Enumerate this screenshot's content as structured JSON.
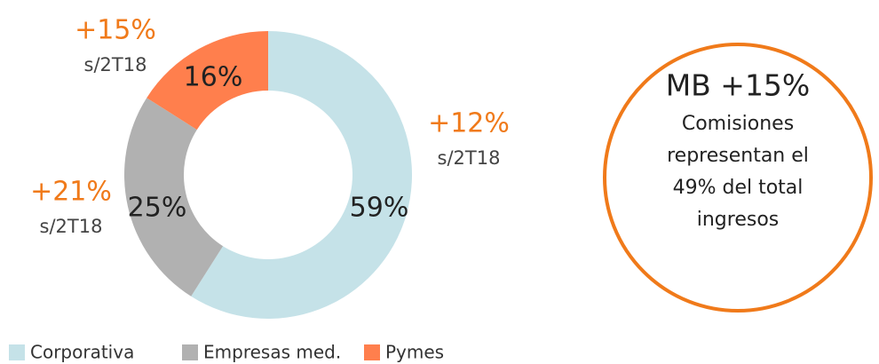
{
  "chart_data": {
    "type": "donut",
    "categories": [
      "Corporativa",
      "Empresas med.",
      "Pymes"
    ],
    "values": [
      59,
      25,
      16
    ],
    "value_labels": [
      "59%",
      "25%",
      "16%"
    ],
    "colors": [
      "#c5e2e8",
      "#b1b1b1",
      "#ff7f4d"
    ],
    "growth": [
      "+12%",
      "+21%",
      "+15%"
    ],
    "growth_note": [
      "s/2T18",
      "s/2T18",
      "s/2T18"
    ],
    "callout": {
      "title": "MB +15%",
      "lines": [
        "Comisiones",
        "representan el",
        "49% del total",
        "ingresos"
      ]
    }
  }
}
